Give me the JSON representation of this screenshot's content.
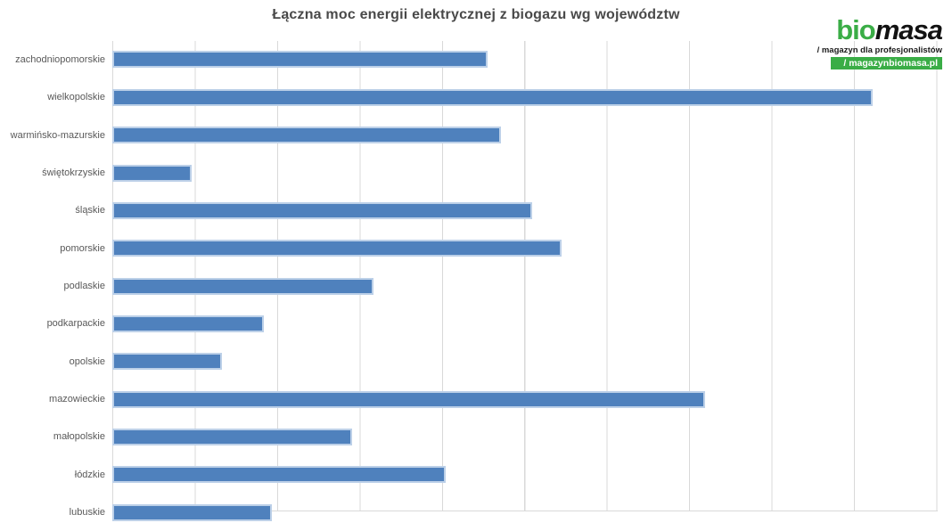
{
  "header": {
    "title": "Łączna moc energii elektrycznej z biogazu wg województw"
  },
  "logo": {
    "brand_green": "bio",
    "brand_black": "masa",
    "tagline": "/ magazyn dla profesjonalistów",
    "website": "/ magazynbiomasa.pl",
    "green_color": "#3aad46",
    "black_color": "#121212"
  },
  "chart_data": {
    "type": "bar",
    "orientation": "horizontal",
    "title": "Łączna moc energii elektrycznej z biogazu wg województw",
    "categories": [
      "zachodniopomorskie",
      "wielkopolskie",
      "warmińsko-mazurskie",
      "świętokrzyskie",
      "śląskie",
      "pomorskie",
      "podlaskie",
      "podkarpackie",
      "opolskie",
      "mazowieckie",
      "małopolskie",
      "łódzkie",
      "lubuskie"
    ],
    "values": [
      45.5,
      92.3,
      47.2,
      9.6,
      50.9,
      54.5,
      31.7,
      18.4,
      13.3,
      71.9,
      29.1,
      40.5,
      19.4
    ],
    "xlabel": "",
    "ylabel": "",
    "xlim": [
      0,
      100
    ],
    "gridline_interval": 10,
    "x_tick_labels_visible": false,
    "grid": true,
    "legend": false,
    "clipped_at_bottom": true,
    "bar_color": "#4f81bd",
    "bar_border_color": "#bcd0e8",
    "gridline_color": "#d9d9d9"
  }
}
